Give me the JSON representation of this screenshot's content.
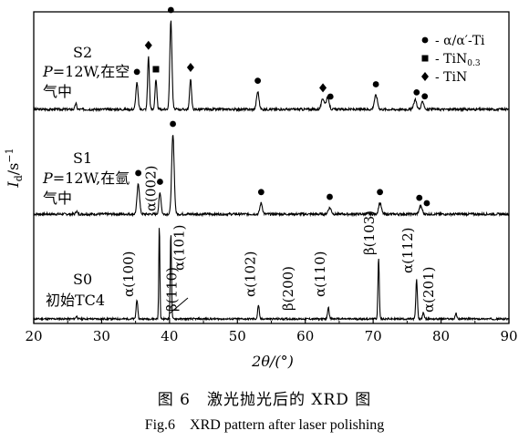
{
  "caption": {
    "cn": "图 6　激光抛光后的 XRD 图",
    "en": "Fig.6　XRD pattern after laser polishing"
  },
  "legend": {
    "alpha": "- α/α′-Ti",
    "tin03_main": "- TiN",
    "tin03_sub": "0.3",
    "tin": "- TiN"
  },
  "labels": {
    "s2_name": "S2",
    "s2_cond_p": "P",
    "s2_cond_rest": "=12W,在空",
    "s2_cond_line2": "气中",
    "s1_name": "S1",
    "s1_cond_p": "P",
    "s1_cond_rest": "=12W,在氩",
    "s1_cond_line2": "气中",
    "s0_name": "S0",
    "s0_cond": "初始TC4"
  },
  "chart_data": {
    "type": "line",
    "title": "",
    "xlabel": "2θ/(°)",
    "ylabel": "I_d/s^-1",
    "xlim": [
      20,
      90
    ],
    "xticks": [
      20,
      30,
      40,
      50,
      60,
      70,
      80,
      90
    ],
    "grid": false,
    "series": [
      {
        "name": "S2",
        "baseline": 0,
        "peaks": [
          {
            "x": 26.2,
            "h": 0.07,
            "w": 0.25
          },
          {
            "x": 35.2,
            "h": 0.3,
            "w": 0.35
          },
          {
            "x": 36.9,
            "h": 0.6,
            "w": 0.28
          },
          {
            "x": 38.0,
            "h": 0.33,
            "w": 0.3
          },
          {
            "x": 40.2,
            "h": 1.0,
            "w": 0.35
          },
          {
            "x": 43.1,
            "h": 0.35,
            "w": 0.3
          },
          {
            "x": 53.0,
            "h": 0.2,
            "w": 0.4
          },
          {
            "x": 62.6,
            "h": 0.12,
            "w": 0.5
          },
          {
            "x": 63.3,
            "h": 0.14,
            "w": 0.45
          },
          {
            "x": 70.4,
            "h": 0.16,
            "w": 0.5
          },
          {
            "x": 76.2,
            "h": 0.11,
            "w": 0.45
          },
          {
            "x": 77.3,
            "h": 0.09,
            "w": 0.4
          }
        ],
        "markers": [
          {
            "x": 35.2,
            "type": "circle"
          },
          {
            "x": 36.9,
            "type": "diamond"
          },
          {
            "x": 38.0,
            "type": "square"
          },
          {
            "x": 40.2,
            "type": "circle"
          },
          {
            "x": 43.1,
            "type": "diamond"
          },
          {
            "x": 53.0,
            "type": "circle"
          },
          {
            "x": 62.6,
            "type": "diamond"
          },
          {
            "x": 63.7,
            "type": "circle"
          },
          {
            "x": 70.4,
            "type": "circle"
          },
          {
            "x": 76.4,
            "type": "circle"
          },
          {
            "x": 77.6,
            "type": "circle"
          }
        ]
      },
      {
        "name": "S1",
        "baseline": 0,
        "peaks": [
          {
            "x": 26.3,
            "h": 0.04,
            "w": 0.25
          },
          {
            "x": 35.4,
            "h": 0.38,
            "w": 0.4
          },
          {
            "x": 38.6,
            "h": 0.27,
            "w": 0.35
          },
          {
            "x": 40.5,
            "h": 1.0,
            "w": 0.4
          },
          {
            "x": 53.5,
            "h": 0.14,
            "w": 0.4
          },
          {
            "x": 63.6,
            "h": 0.08,
            "w": 0.5
          },
          {
            "x": 71.0,
            "h": 0.14,
            "w": 0.45
          },
          {
            "x": 77.0,
            "h": 0.1,
            "w": 0.5
          }
        ],
        "markers": [
          {
            "x": 35.4,
            "type": "circle"
          },
          {
            "x": 38.6,
            "type": "circle"
          },
          {
            "x": 40.5,
            "type": "circle"
          },
          {
            "x": 53.5,
            "type": "circle"
          },
          {
            "x": 63.6,
            "type": "circle"
          },
          {
            "x": 71.0,
            "type": "circle"
          },
          {
            "x": 76.8,
            "type": "circle"
          },
          {
            "x": 77.9,
            "type": "circle"
          }
        ]
      },
      {
        "name": "S0",
        "baseline": 0,
        "peaks": [
          {
            "x": 26.3,
            "h": 0.03,
            "w": 0.25
          },
          {
            "x": 35.2,
            "h": 0.21,
            "w": 0.25
          },
          {
            "x": 38.5,
            "h": 1.0,
            "w": 0.18
          },
          {
            "x": 40.2,
            "h": 0.93,
            "w": 0.2
          },
          {
            "x": 53.1,
            "h": 0.15,
            "w": 0.25
          },
          {
            "x": 63.4,
            "h": 0.13,
            "w": 0.25
          },
          {
            "x": 70.8,
            "h": 0.66,
            "w": 0.22
          },
          {
            "x": 76.4,
            "h": 0.42,
            "w": 0.25
          },
          {
            "x": 77.4,
            "h": 0.07,
            "w": 0.25
          },
          {
            "x": 82.2,
            "h": 0.06,
            "w": 0.25
          }
        ],
        "annotations": [
          {
            "text": "α(100)",
            "x": 35.2
          },
          {
            "text": "α(002)",
            "x": 38.5
          },
          {
            "text": "α(101)",
            "x": 40.2
          },
          {
            "text": "β(110)",
            "x": 39.3
          },
          {
            "text": "α(102)",
            "x": 53.1
          },
          {
            "text": "β(200)",
            "x": 57.5
          },
          {
            "text": "α(110)",
            "x": 63.4
          },
          {
            "text": "β(103)",
            "x": 70.8
          },
          {
            "text": "α(112)",
            "x": 76.4
          },
          {
            "text": "α(201)",
            "x": 77.8
          }
        ]
      }
    ]
  }
}
